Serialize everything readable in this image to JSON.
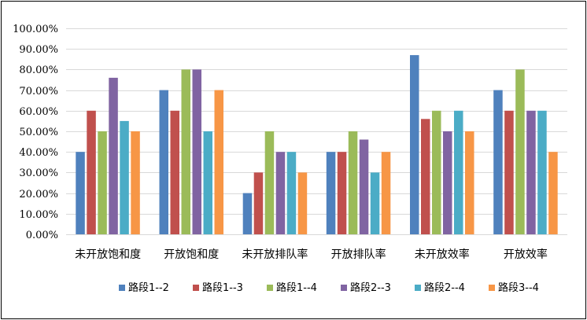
{
  "chart_data": {
    "type": "bar",
    "categories": [
      "未开放饱和度",
      "开放饱和度",
      "未开放排队率",
      "开放排队率",
      "未开放效率",
      "开放效率"
    ],
    "series": [
      {
        "name": "路段1--2",
        "color": "#4f81bd",
        "values": [
          0.4,
          0.7,
          0.2,
          0.4,
          0.87,
          0.7
        ]
      },
      {
        "name": "路段1--3",
        "color": "#c0504d",
        "values": [
          0.6,
          0.6,
          0.3,
          0.4,
          0.56,
          0.6
        ]
      },
      {
        "name": "路段1--4",
        "color": "#9bbb59",
        "values": [
          0.5,
          0.8,
          0.5,
          0.5,
          0.6,
          0.8
        ]
      },
      {
        "name": "路段2--3",
        "color": "#8064a2",
        "values": [
          0.76,
          0.8,
          0.4,
          0.46,
          0.5,
          0.6
        ]
      },
      {
        "name": "路段2--4",
        "color": "#4bacc6",
        "values": [
          0.55,
          0.5,
          0.4,
          0.3,
          0.6,
          0.6
        ]
      },
      {
        "name": "路段3--4",
        "color": "#f79646",
        "values": [
          0.5,
          0.7,
          0.3,
          0.4,
          0.5,
          0.4
        ]
      }
    ],
    "ylim": [
      0,
      1
    ],
    "yticks": [
      "0.00%",
      "10.00%",
      "20.00%",
      "30.00%",
      "40.00%",
      "50.00%",
      "60.00%",
      "70.00%",
      "80.00%",
      "90.00%",
      "100.00%"
    ],
    "title": "",
    "xlabel": "",
    "ylabel": "",
    "grid": true,
    "legend_position": "bottom"
  }
}
